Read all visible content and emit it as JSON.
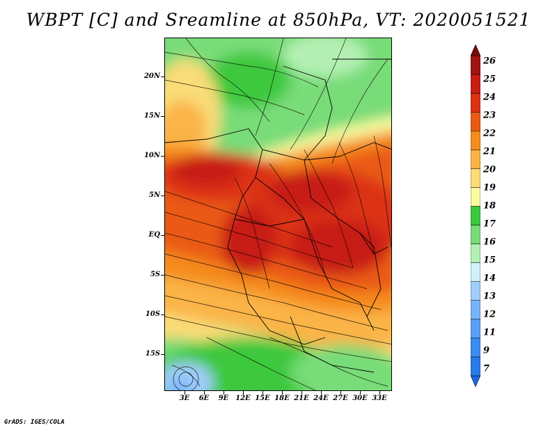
{
  "title": "WBPT [C] and Sreamline at 850hPa, VT: 2020051521",
  "footer": "GrADS: IGES/COLA",
  "map": {
    "lat_labels": [
      "20N",
      "15N",
      "10N",
      "5N",
      "EQ",
      "5S",
      "10S",
      "15S"
    ],
    "lat_values": [
      20,
      15,
      10,
      5,
      0,
      -5,
      -10,
      -15
    ],
    "lon_labels": [
      "3E",
      "6E",
      "9E",
      "12E",
      "15E",
      "18E",
      "21E",
      "24E",
      "27E",
      "30E",
      "33E"
    ],
    "lon_values": [
      3,
      6,
      9,
      12,
      15,
      18,
      21,
      24,
      27,
      30,
      33
    ],
    "lat_range": [
      -19.5,
      25
    ],
    "lon_range": [
      0,
      35
    ]
  },
  "colorbar": {
    "levels": [
      "7",
      "9",
      "11",
      "12",
      "13",
      "14",
      "15",
      "16",
      "17",
      "18",
      "19",
      "20",
      "21",
      "22",
      "23",
      "24",
      "25",
      "26"
    ],
    "colors": [
      "#1e64dc",
      "#2a7ae8",
      "#3c8cf0",
      "#5aa0f5",
      "#78b4fa",
      "#a0cdfa",
      "#d2f0fa",
      "#b4f0b4",
      "#78dc78",
      "#3cc83c",
      "#fafaa0",
      "#fadc78",
      "#fab446",
      "#f58c1e",
      "#ea5a14",
      "#dc3214",
      "#c81e14",
      "#a01414",
      "#780a0a"
    ]
  }
}
